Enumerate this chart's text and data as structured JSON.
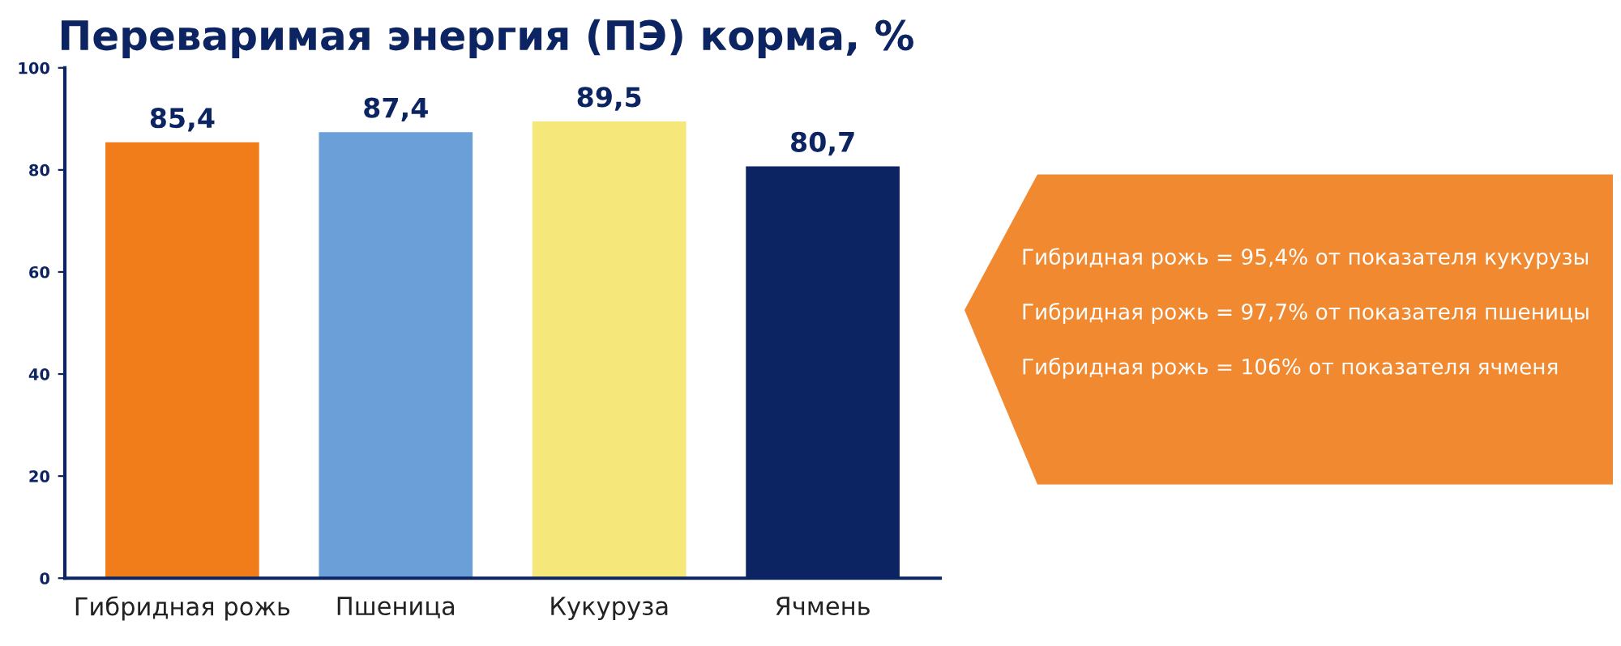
{
  "chart_data": {
    "type": "bar",
    "title": "Переваримая энергия (ПЭ) корма, %",
    "categories": [
      "Гибридная рожь",
      "Пшеница",
      "Кукуруза",
      "Ячмень"
    ],
    "values": [
      85.4,
      87.4,
      89.5,
      80.7
    ],
    "value_labels": [
      "85,4",
      "87,4",
      "89,5",
      "80,7"
    ],
    "colors": [
      "#f07c1a",
      "#6a9fd8",
      "#f5e77a",
      "#0c2461"
    ],
    "ylim": [
      0,
      100
    ],
    "yticks": [
      0,
      20,
      40,
      60,
      80,
      100
    ],
    "grid": false,
    "legend": false,
    "annotations": [
      "Гибридная рожь = 95,4% от показателя кукурузы",
      "Гибридная рожь = 97,7% от показателя пшеницы",
      "Гибридная рожь = 106% от показателя ячменя"
    ]
  }
}
